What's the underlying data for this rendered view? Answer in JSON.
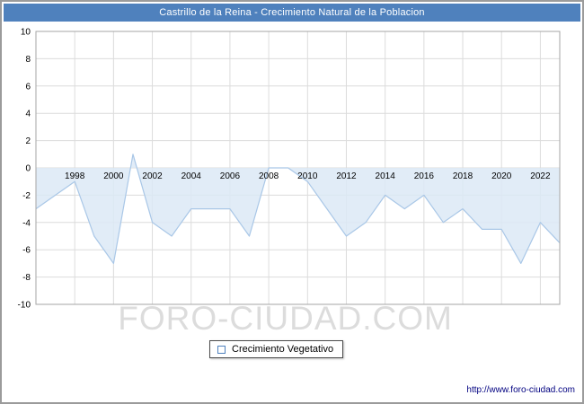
{
  "title": "Castrillo de la Reina - Crecimiento Natural de la Poblacion",
  "legend": {
    "label": "Crecimiento Vegetativo"
  },
  "watermark": "FORO-CIUDAD.COM",
  "footer": {
    "url": "http://www.foro-ciudad.com"
  },
  "colors": {
    "titlebar_bg": "#4f81bd",
    "titlebar_text": "#ffffff",
    "area_fill": "#dce9f6",
    "line": "#a9c7e7",
    "grid": "#dcdcdc",
    "plot_border": "#a6a6a6",
    "axis_text": "#000000",
    "url_text": "#000080",
    "watermark_text": "#d7d7d7"
  },
  "chart_data": {
    "type": "area",
    "title": "Castrillo de la Reina - Crecimiento Natural de la Poblacion",
    "xlabel": "",
    "ylabel": "",
    "x": [
      1996,
      1997,
      1998,
      1999,
      2000,
      2001,
      2002,
      2003,
      2004,
      2005,
      2006,
      2007,
      2008,
      2009,
      2010,
      2011,
      2012,
      2013,
      2014,
      2015,
      2016,
      2017,
      2018,
      2019,
      2020,
      2021,
      2022,
      2023
    ],
    "series": [
      {
        "name": "Crecimiento Vegetativo",
        "values": [
          -3,
          -2,
          -1,
          -5,
          -7,
          1,
          -4,
          -5,
          -3,
          -3,
          -3,
          -5,
          0,
          0,
          -1,
          -3,
          -5,
          -4,
          -2,
          -3,
          -2,
          -4,
          -3,
          -4.5,
          -4.5,
          -7,
          -4,
          -5.5
        ]
      }
    ],
    "xlim": [
      1996,
      2023
    ],
    "ylim": [
      -10,
      10
    ],
    "xticks": [
      1998,
      2000,
      2002,
      2004,
      2006,
      2008,
      2010,
      2012,
      2014,
      2016,
      2018,
      2020,
      2022
    ],
    "yticks": [
      -10,
      -8,
      -6,
      -4,
      -2,
      0,
      2,
      4,
      6,
      8,
      10
    ],
    "grid": true,
    "baseline": 0,
    "legend_position": "bottom",
    "x_tick_labels_at_zero_line": true
  }
}
